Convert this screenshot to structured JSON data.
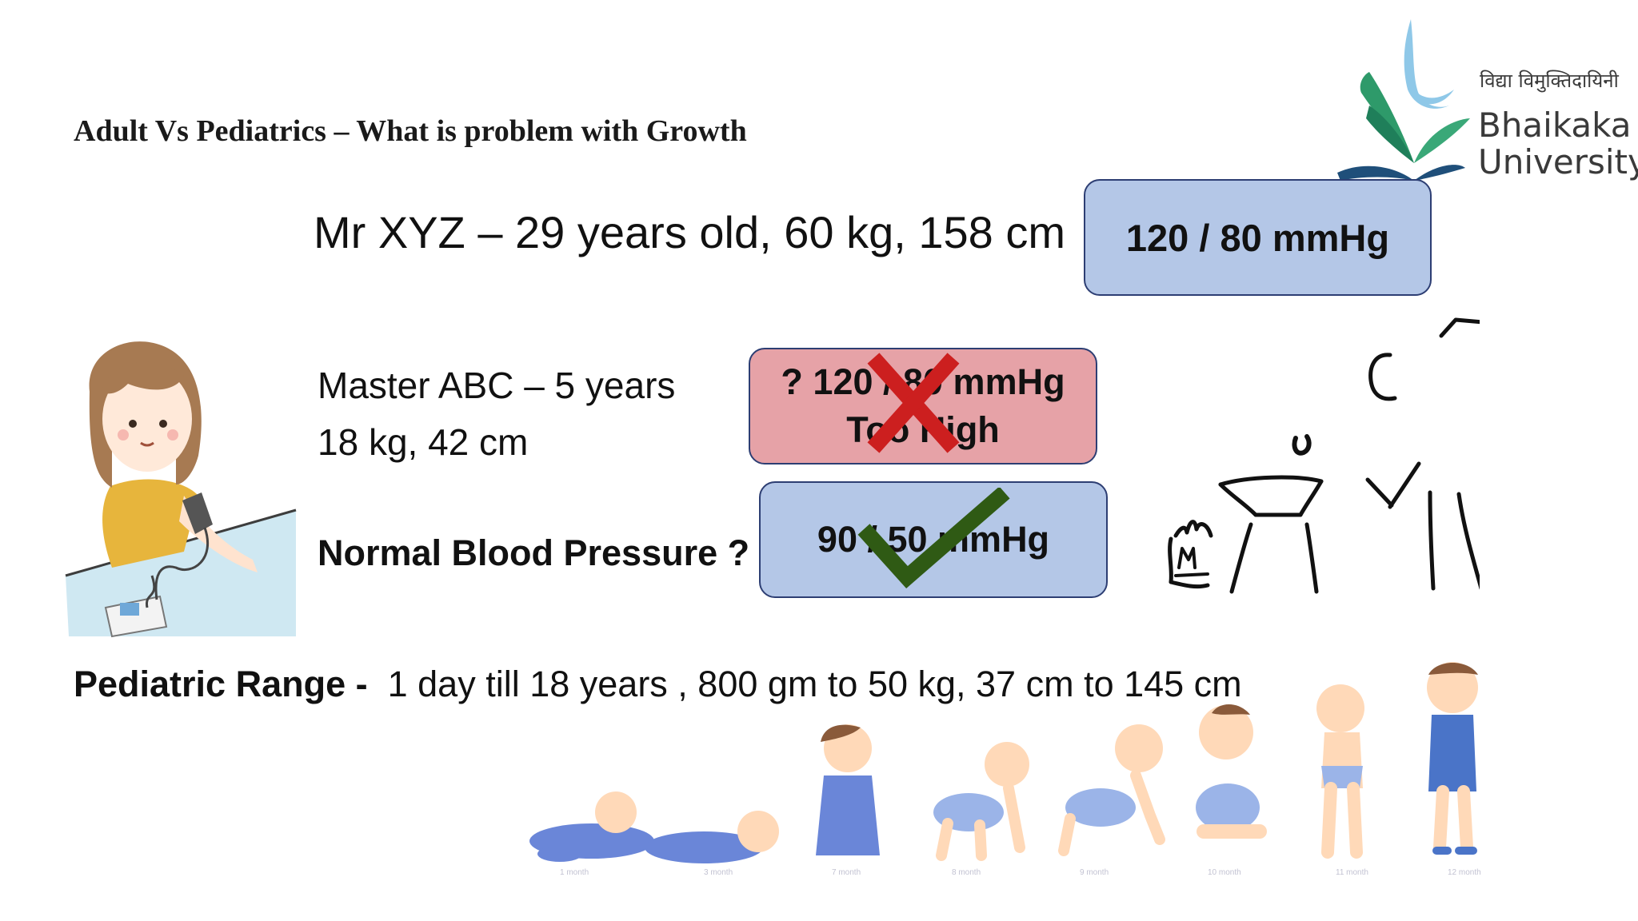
{
  "slide": {
    "title": "Adult Vs Pediatrics – What is problem with Growth",
    "adult": {
      "description": "Mr XYZ – 29 years old, 60 kg, 158 cm",
      "bp": "120 / 80 mmHg"
    },
    "child": {
      "line1": "Master ABC – 5 years",
      "line2": "18 kg, 42 cm",
      "bp_wrong_line1": "? 120 / 80 mmHg",
      "bp_wrong_line2": "Too High",
      "question": "Normal Blood Pressure ?",
      "bp_normal": "90 / 50 mmHg"
    },
    "range": {
      "label": "Pediatric Range -",
      "value": "1 day till 18 years , 800 gm to 50 kg, 37 cm to 145 cm"
    }
  },
  "logo": {
    "hindi": "विद्या विमुक्तिदायिनी",
    "line1": "Bhaikaka",
    "line2": "University"
  },
  "babies": {
    "labels": [
      "1 month",
      "3 month",
      "7 month",
      "8 month",
      "9 month",
      "10 month",
      "11 month",
      "12 month"
    ]
  },
  "colors": {
    "box_blue": "#b4c7e7",
    "box_red": "#e6a2a7",
    "box_border": "#2d3e73",
    "cross": "#cc1f1f",
    "check": "#2f5a14"
  }
}
